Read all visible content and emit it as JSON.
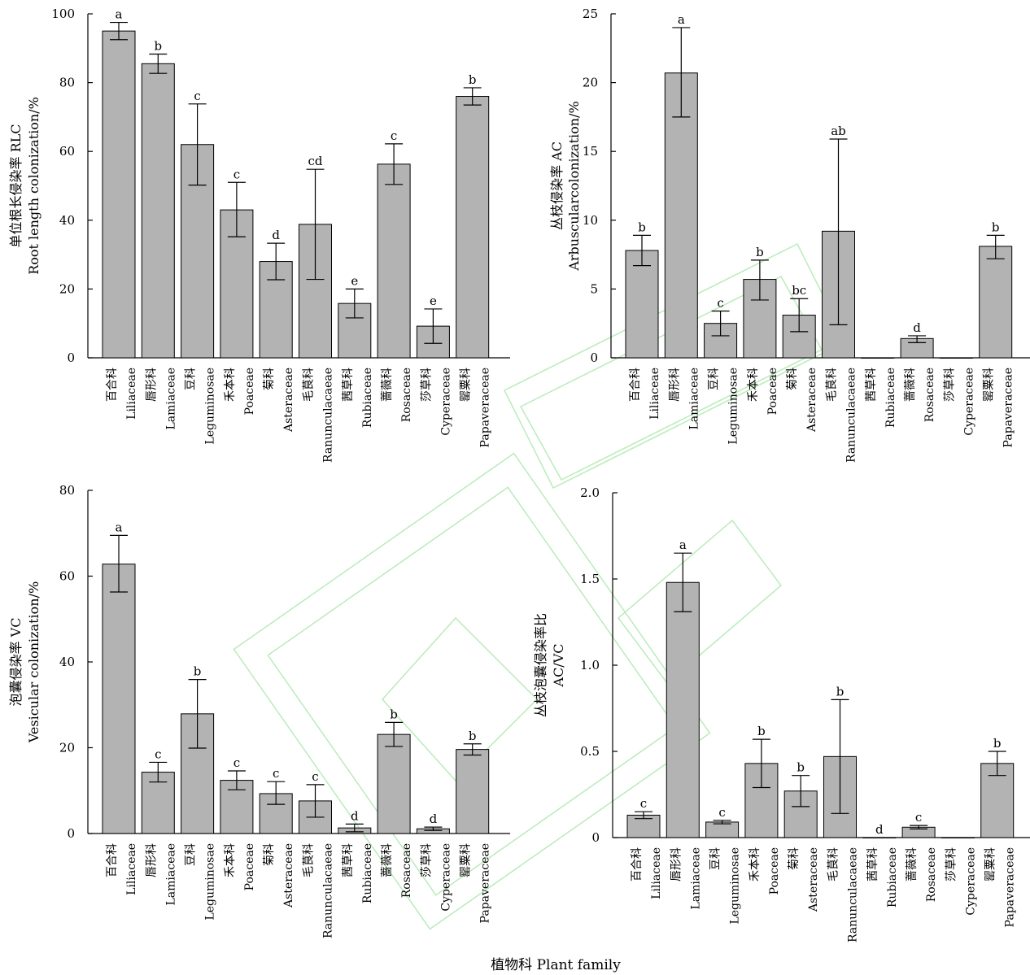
{
  "xlabel": "植物科 Plant family",
  "categories": [
    {
      "zh": "百合科",
      "en": "Liliaceae"
    },
    {
      "zh": "唇形科",
      "en": "Lamiaceae"
    },
    {
      "zh": "豆科",
      "en": "Leguminosae"
    },
    {
      "zh": "禾本科",
      "en": "Poaceae"
    },
    {
      "zh": "菊科",
      "en": "Asteraceae"
    },
    {
      "zh": "毛茛科",
      "en": "Ranunculacaeae"
    },
    {
      "zh": "茜草科",
      "en": "Rubiaceae"
    },
    {
      "zh": "蔷薇科",
      "en": "Rosaceae"
    },
    {
      "zh": "莎草科",
      "en": "Cyperaceae"
    },
    {
      "zh": "罂粟科",
      "en": "Papaveraceae"
    }
  ],
  "colors": {
    "bar_fill": "#b3b3b3",
    "bar_stroke": "#000000",
    "watermark": "#3cc83c"
  },
  "chart_data": [
    {
      "id": "rlc",
      "type": "bar",
      "ylabel_zh": "单位根长侵染率 RLC",
      "ylabel_en": "Root length colonization/%",
      "ylim": [
        0,
        100
      ],
      "yticks": [
        0,
        20,
        40,
        60,
        80,
        100
      ],
      "tick_labels": [
        "0",
        "20",
        "40",
        "60",
        "80",
        "100"
      ],
      "values": [
        95,
        85.5,
        62,
        43,
        28,
        38.8,
        15.8,
        56.3,
        9.2,
        76
      ],
      "err_upper": [
        97.5,
        88.3,
        73.8,
        51,
        33.3,
        54.8,
        20,
        62.2,
        14.2,
        78.5
      ],
      "err_lower": [
        92.5,
        82.7,
        50.2,
        35.2,
        22.7,
        22.8,
        11.6,
        50.4,
        4.2,
        73.5
      ],
      "sig": [
        "a",
        "b",
        "c",
        "c",
        "d",
        "cd",
        "e",
        "c",
        "e",
        "b"
      ]
    },
    {
      "id": "ac",
      "type": "bar",
      "ylabel_zh": "丛枝侵染率 AC",
      "ylabel_en": "Arbuscularcolonization/%",
      "ylim": [
        0,
        25
      ],
      "yticks": [
        0,
        5,
        10,
        15,
        20,
        25
      ],
      "tick_labels": [
        "0",
        "5",
        "10",
        "15",
        "20",
        "25"
      ],
      "values": [
        7.8,
        20.7,
        2.5,
        5.7,
        3.1,
        9.2,
        0,
        1.4,
        0,
        8.1
      ],
      "err_upper": [
        8.9,
        24,
        3.4,
        7.1,
        4.3,
        15.9,
        null,
        1.6,
        null,
        8.9
      ],
      "err_lower": [
        6.7,
        17.5,
        1.6,
        4.2,
        1.9,
        2.4,
        null,
        1.1,
        null,
        7.2
      ],
      "sig": [
        "b",
        "a",
        "c",
        "b",
        "bc",
        "ab",
        "",
        "d",
        "",
        "b"
      ]
    },
    {
      "id": "vc",
      "type": "bar",
      "ylabel_zh": "泡囊侵染率 VC",
      "ylabel_en": "Vesicular colonization/%",
      "ylim": [
        0,
        80
      ],
      "yticks": [
        0,
        20,
        40,
        60,
        80
      ],
      "tick_labels": [
        "0",
        "20",
        "40",
        "60",
        "80"
      ],
      "values": [
        62.8,
        14.3,
        27.9,
        12.4,
        9.3,
        7.6,
        1.3,
        23.1,
        1.1,
        19.6
      ],
      "err_upper": [
        69.5,
        16.6,
        35.9,
        14.6,
        12.1,
        11.4,
        2.2,
        25.9,
        1.5,
        20.9
      ],
      "err_lower": [
        56.3,
        12,
        19.9,
        10.2,
        6.8,
        3.8,
        0.4,
        20.3,
        0.7,
        18.3
      ],
      "sig": [
        "a",
        "c",
        "b",
        "c",
        "c",
        "c",
        "d",
        "b",
        "d",
        "b"
      ]
    },
    {
      "id": "acvc",
      "type": "bar",
      "ylabel_zh": "丛枝泡囊侵染率比",
      "ylabel_en": "AC/VC",
      "ylim": [
        0,
        2.0
      ],
      "yticks": [
        0,
        0.5,
        1.0,
        1.5,
        2.0
      ],
      "tick_labels": [
        "0",
        "0.5",
        "1.0",
        "1.5",
        "2.0"
      ],
      "values": [
        0.13,
        1.48,
        0.09,
        0.43,
        0.27,
        0.47,
        0,
        0.06,
        0,
        0.43
      ],
      "err_upper": [
        0.15,
        1.65,
        0.1,
        0.57,
        0.36,
        0.8,
        null,
        0.07,
        null,
        0.5
      ],
      "err_lower": [
        0.11,
        1.31,
        0.08,
        0.29,
        0.18,
        0.14,
        null,
        0.05,
        null,
        0.36
      ],
      "sig": [
        "c",
        "a",
        "c",
        "b",
        "b",
        "b",
        "d",
        "c",
        "",
        "b"
      ]
    }
  ]
}
